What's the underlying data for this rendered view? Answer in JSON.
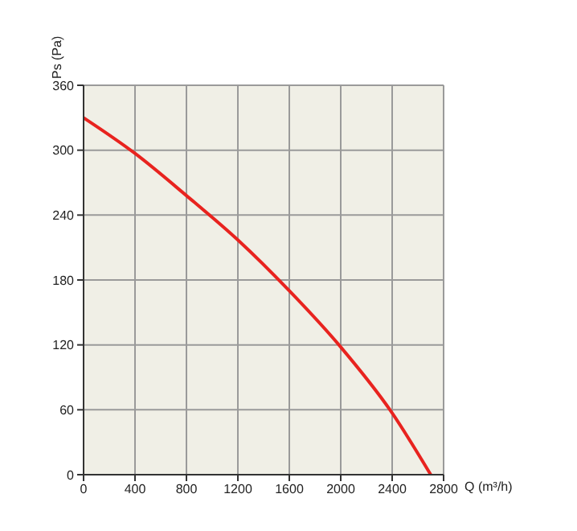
{
  "chart_data": {
    "type": "line",
    "xlabel": "Q (m³/h)",
    "ylabel": "Ps (Pa)",
    "x": [
      0,
      400,
      800,
      1200,
      1600,
      2000,
      2400,
      2700
    ],
    "series": [
      {
        "color": "#e8231f",
        "values": [
          330,
          297,
          258,
          217,
          170,
          118,
          57,
          0
        ]
      }
    ],
    "xlim": [
      0,
      2800
    ],
    "xticks": [
      0,
      400,
      800,
      1200,
      1600,
      2000,
      2400,
      2800
    ],
    "ylim": [
      0,
      360
    ],
    "yticks": [
      0,
      60,
      120,
      180,
      240,
      300,
      360
    ],
    "grid": true,
    "marker": "none",
    "line_style": "solid"
  }
}
